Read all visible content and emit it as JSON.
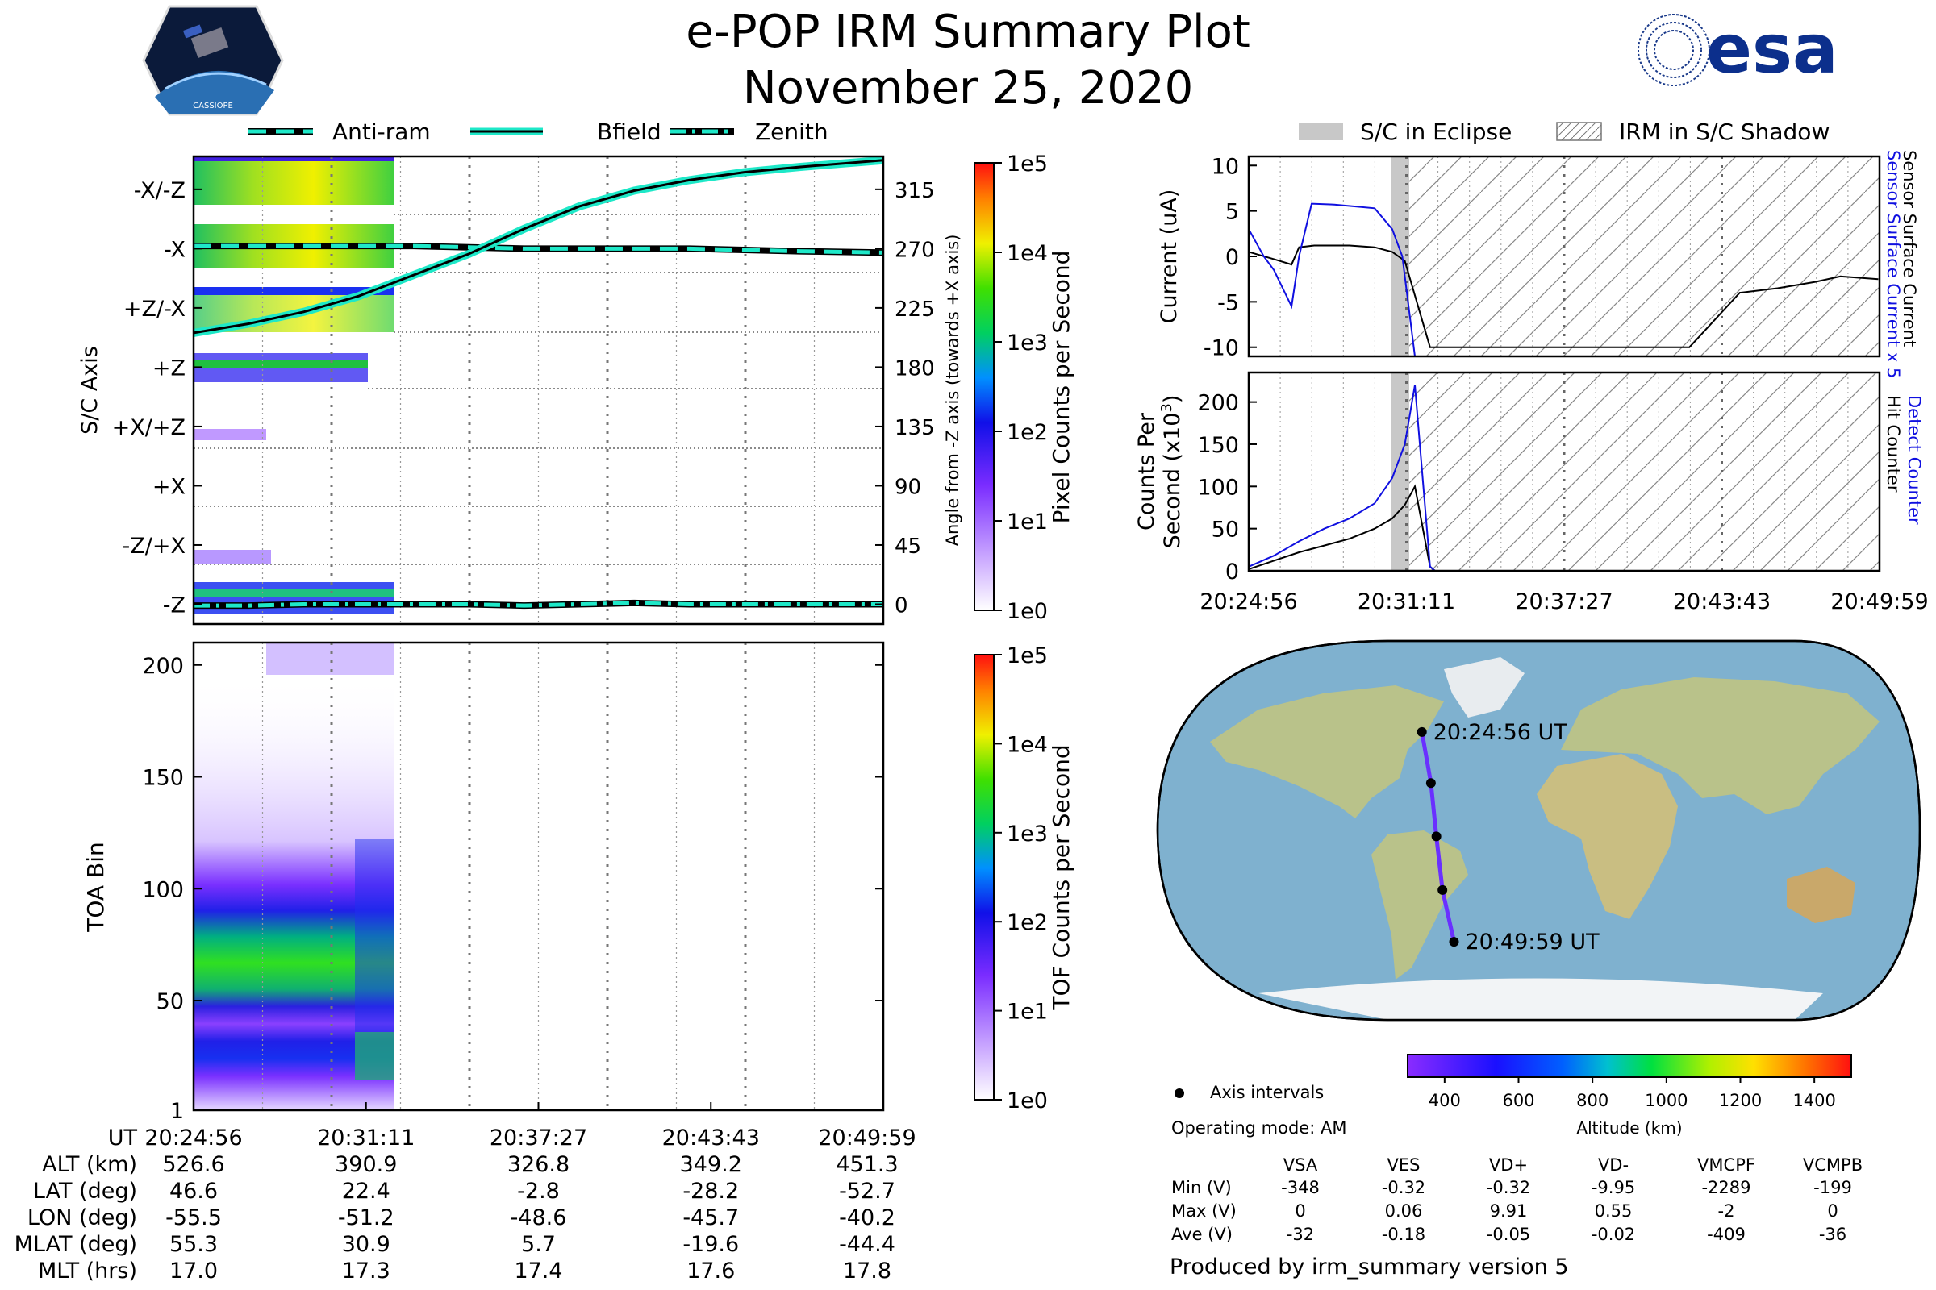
{
  "title": {
    "line1": "e-POP IRM Summary Plot",
    "line2": "November 25, 2020"
  },
  "logos": {
    "left_caption": "CASSIOPE",
    "right_text": "esa"
  },
  "legend_top_left": [
    {
      "label": "Anti-ram",
      "style": "dashed"
    },
    {
      "label": "Bfield",
      "style": "solid"
    },
    {
      "label": "Zenith",
      "style": "dashdot"
    }
  ],
  "legend_top_right": [
    {
      "label": "S/C in Eclipse"
    },
    {
      "label": "IRM in S/C Shadow"
    }
  ],
  "colors": {
    "line_cyan": "#1ee8c8",
    "blue": "#1010e0",
    "eclipse_gray": "#c8c8c8",
    "ocean": "#7fb1cf",
    "land": "#b9c28a",
    "ice": "#f2f4f6"
  },
  "chart_data": [
    {
      "id": "sc-axis",
      "type": "heatmap",
      "ylabel": "S/C Axis",
      "ylabel_right": "Angle from -Z axis (towards +X axis)",
      "categories": [
        "-X/-Z",
        "-X",
        "+Z/-X",
        "+Z",
        "+X/+Z",
        "+X",
        "-Z/+X",
        "-Z"
      ],
      "right_ticks": [
        315,
        270,
        225,
        180,
        135,
        90,
        45,
        0
      ],
      "ylim": [
        -15,
        340
      ],
      "colorbar_label": "Pixel Counts per Second",
      "colorbar_ticks": [
        "1e5",
        "1e4",
        "1e3",
        "1e2",
        "1e1",
        "1e0"
      ],
      "series": [
        {
          "name": "Anti-ram",
          "x": [
            0,
            2,
            4,
            6,
            8,
            10,
            12,
            14,
            16,
            18,
            20,
            22,
            25
          ],
          "values": [
            272,
            272,
            272,
            272,
            272,
            271,
            270,
            270,
            270,
            270,
            269,
            268,
            267
          ]
        },
        {
          "name": "Bfield",
          "x": [
            0,
            2,
            4,
            6,
            8,
            10,
            12,
            14,
            16,
            18,
            20,
            22,
            25
          ],
          "values": [
            206,
            213,
            222,
            234,
            250,
            266,
            285,
            302,
            314,
            322,
            328,
            332,
            337
          ]
        },
        {
          "name": "Zenith",
          "x": [
            0,
            2,
            4,
            6,
            8,
            10,
            12,
            14,
            16,
            18,
            20,
            22,
            25
          ],
          "values": [
            -1,
            -1,
            0,
            0,
            0,
            0,
            -1,
            0,
            1,
            0,
            0,
            0,
            0
          ]
        }
      ]
    },
    {
      "id": "toa",
      "type": "heatmap",
      "ylabel": "TOA Bin",
      "yticks": [
        200,
        150,
        100,
        50,
        1
      ],
      "ylim": [
        1,
        210
      ],
      "colorbar_label": "TOF Counts per Second",
      "colorbar_ticks": [
        "1e5",
        "1e4",
        "1e3",
        "1e2",
        "1e1",
        "1e0"
      ]
    },
    {
      "id": "current",
      "type": "line",
      "ylabel": "Current (uA)",
      "ylabel_right_top": "Sensor Surface Current x 5",
      "ylabel_right_bottom": "Sensor Surface Current",
      "yticks": [
        10,
        5,
        0,
        -5,
        -10
      ],
      "ylim": [
        -11,
        11
      ],
      "series": [
        {
          "name": "Sensor Surface Current",
          "x": [
            0,
            1,
            1.7,
            2,
            2.6,
            4,
            5,
            5.7,
            6.2,
            7.2,
            9,
            12,
            15,
            17.5,
            18.5,
            19.5,
            21,
            22.5,
            23.5,
            25
          ],
          "values": [
            0.5,
            -0.3,
            -0.9,
            1,
            1.2,
            1.2,
            1,
            0.5,
            -0.5,
            -10,
            -10,
            -10,
            -10,
            -10,
            -7,
            -4,
            -3.5,
            -2.8,
            -2.2,
            -2.5
          ]
        },
        {
          "name": "Sensor Surface Current x 5",
          "x": [
            0,
            0.6,
            1,
            1.7,
            2,
            2.5,
            3.4,
            4.2,
            5,
            5.7,
            6.1,
            6.6
          ],
          "values": [
            3,
            0,
            -1.5,
            -5.5,
            0,
            5.8,
            5.7,
            5.5,
            5.3,
            3,
            0,
            -11
          ]
        }
      ]
    },
    {
      "id": "counts",
      "type": "line",
      "ylabel_line1": "Counts Per",
      "ylabel_line2": "Second (x10",
      "ylabel_sup": "3",
      "ylabel_end": ")",
      "ylabel_right_top": "Detect Counter",
      "ylabel_right_bottom": "Hit Counter",
      "yticks": [
        200,
        150,
        100,
        50,
        0
      ],
      "ylim": [
        0,
        235
      ],
      "series": [
        {
          "name": "Hit Counter",
          "x": [
            0,
            1,
            2,
            3,
            4,
            5,
            5.7,
            6.2,
            6.6,
            7.2,
            7.4,
            9,
            12,
            16,
            20,
            25
          ],
          "values": [
            2,
            12,
            22,
            30,
            38,
            50,
            62,
            78,
            100,
            5,
            0,
            0,
            0,
            0,
            0,
            0
          ]
        },
        {
          "name": "Detect Counter",
          "x": [
            0,
            1,
            2,
            3,
            4,
            5,
            5.7,
            6.2,
            6.6,
            7.2,
            7.4,
            9,
            12,
            16,
            20,
            25
          ],
          "values": [
            5,
            18,
            35,
            50,
            62,
            80,
            110,
            150,
            220,
            5,
            0,
            0,
            0,
            0,
            0,
            0
          ]
        }
      ]
    }
  ],
  "time_axis": {
    "ticks": [
      "20:24:56",
      "20:31:11",
      "20:37:27",
      "20:43:43",
      "20:49:59"
    ],
    "minutes_span": 25.05
  },
  "ephemeris": {
    "rows": [
      {
        "label": "UT",
        "values": [
          "20:24:56",
          "20:31:11",
          "20:37:27",
          "20:43:43",
          "20:49:59"
        ]
      },
      {
        "label": "ALT (km)",
        "values": [
          "526.6",
          "390.9",
          "326.8",
          "349.2",
          "451.3"
        ]
      },
      {
        "label": "LAT (deg)",
        "values": [
          "46.6",
          "22.4",
          "-2.8",
          "-28.2",
          "-52.7"
        ]
      },
      {
        "label": "LON (deg)",
        "values": [
          "-55.5",
          "-51.2",
          "-48.6",
          "-45.7",
          "-40.2"
        ]
      },
      {
        "label": "MLAT (deg)",
        "values": [
          "55.3",
          "30.9",
          "5.7",
          "-19.6",
          "-44.4"
        ]
      },
      {
        "label": "MLT (hrs)",
        "values": [
          "17.0",
          "17.3",
          "17.4",
          "17.6",
          "17.8"
        ]
      }
    ]
  },
  "map": {
    "start_label": "20:24:56 UT",
    "end_label": "20:49:59 UT",
    "track": [
      {
        "lat": 46.6,
        "lon": -55.5
      },
      {
        "lat": 22.4,
        "lon": -51.2
      },
      {
        "lat": -2.8,
        "lon": -48.6
      },
      {
        "lat": -28.2,
        "lon": -45.7
      },
      {
        "lat": -52.7,
        "lon": -40.2
      }
    ],
    "altitude_colorbar": {
      "label": "Altitude (km)",
      "ticks": [
        "400",
        "600",
        "800",
        "1000",
        "1200",
        "1400"
      ],
      "range": [
        300,
        1500
      ]
    },
    "legend_label": "Axis intervals",
    "operating_mode": "Operating mode: AM"
  },
  "voltage_table": {
    "columns": [
      "VSA",
      "VES",
      "VD+",
      "VD-",
      "VMCPF",
      "VCMPB"
    ],
    "rows": [
      {
        "label": "Min (V)",
        "values": [
          "-348",
          "-0.32",
          "-0.32",
          "-9.95",
          "-2289",
          "-199"
        ]
      },
      {
        "label": "Max (V)",
        "values": [
          "0",
          "0.06",
          "9.91",
          "0.55",
          "-2",
          "0"
        ]
      },
      {
        "label": "Ave (V)",
        "values": [
          "-32",
          "-0.18",
          "-0.05",
          "-0.02",
          "-409",
          "-36"
        ]
      }
    ]
  },
  "footer": "Produced by irm_summary version 5"
}
